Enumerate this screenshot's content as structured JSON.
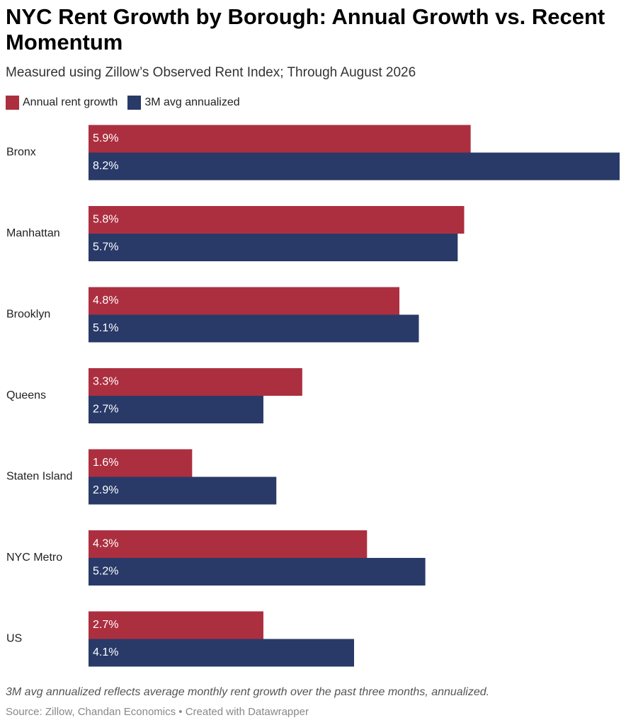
{
  "title": "NYC Rent Growth by Borough: Annual Growth vs. Recent Momentum",
  "subtitle": "Measured using Zillow’s Observed Rent Index; Through August 2026",
  "note": "3M avg annualized reflects average monthly rent growth over the past three months, annualized.",
  "source": "Source: Zillow, Chandan Economics • Created with Datawrapper",
  "chart_data": {
    "type": "bar",
    "orientation": "horizontal",
    "categories": [
      "Bronx",
      "Manhattan",
      "Brooklyn",
      "Queens",
      "Staten Island",
      "NYC Metro",
      "US"
    ],
    "series": [
      {
        "name": "Annual rent growth",
        "color": "#ac2f40",
        "values": [
          5.9,
          5.8,
          4.8,
          3.3,
          1.6,
          4.3,
          2.7
        ],
        "labels": [
          "5.9%",
          "5.8%",
          "4.8%",
          "3.3%",
          "1.6%",
          "4.3%",
          "2.7%"
        ]
      },
      {
        "name": "3M avg annualized",
        "color": "#293a68",
        "values": [
          8.2,
          5.7,
          5.1,
          2.7,
          2.9,
          5.2,
          4.1
        ],
        "labels": [
          "8.2%",
          "5.7%",
          "5.1%",
          "2.7%",
          "2.9%",
          "5.2%",
          "4.1%"
        ]
      }
    ],
    "xlim": [
      0,
      8.2
    ],
    "legend_position": "top-left",
    "grid": false
  }
}
